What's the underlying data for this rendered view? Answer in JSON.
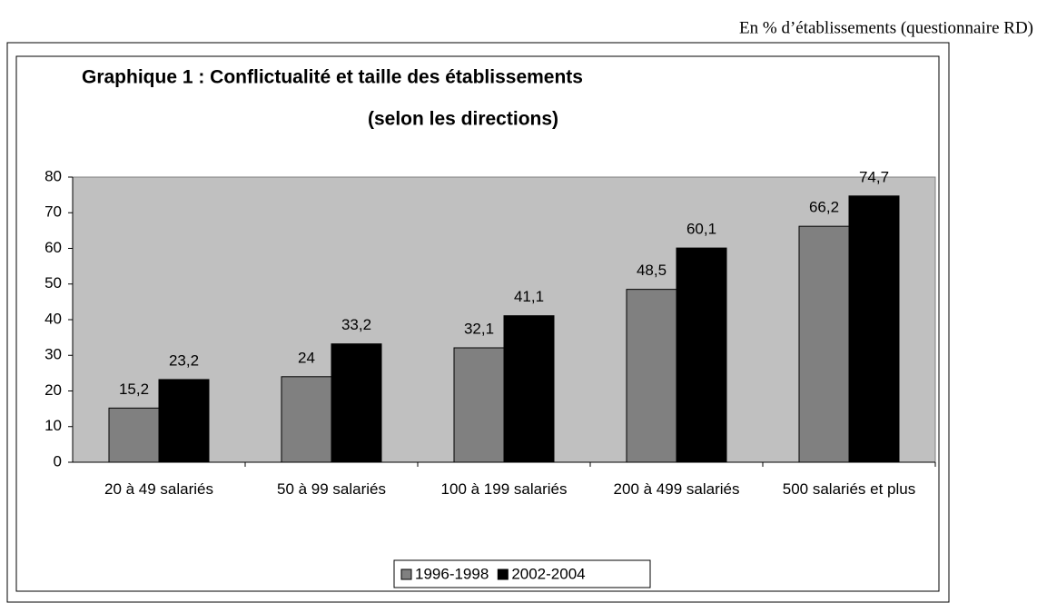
{
  "chart_data": {
    "type": "bar",
    "annotation": "En % d’établissements (questionnaire RD)",
    "title": "Graphique 1 : Conflictualité et taille des établissements",
    "subtitle": "(selon les directions)",
    "categories": [
      "20 à 49 salariés",
      "50 à 99 salariés",
      "100 à 199 salariés",
      "200 à 499 salariés",
      "500 salariés et plus"
    ],
    "series": [
      {
        "name": "1996-1998",
        "color": "#808080",
        "values": [
          15.2,
          24,
          32.1,
          48.5,
          66.2
        ],
        "value_labels": [
          "15,2",
          "24",
          "32,1",
          "48,5",
          "66,2"
        ]
      },
      {
        "name": "2002-2004",
        "color": "#000000",
        "values": [
          23.2,
          33.2,
          41.1,
          60.1,
          74.7
        ],
        "value_labels": [
          "23,2",
          "33,2",
          "41,1",
          "60,1",
          "74,7"
        ]
      }
    ],
    "ylim": [
      0,
      80
    ],
    "yticks": [
      0,
      10,
      20,
      30,
      40,
      50,
      60,
      70,
      80
    ],
    "legend": "bottom"
  }
}
